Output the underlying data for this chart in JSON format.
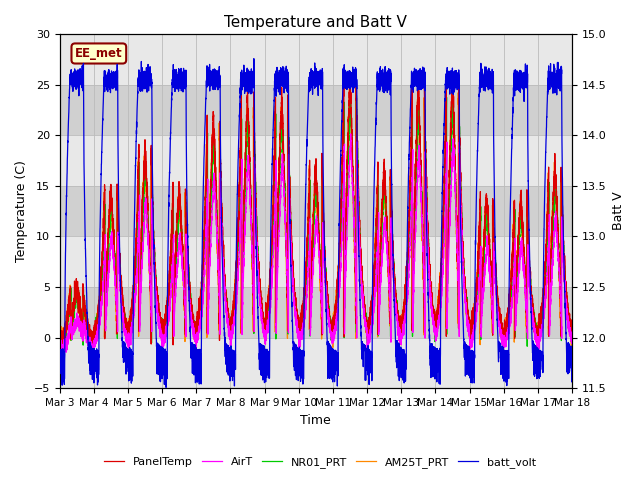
{
  "title": "Temperature and Batt V",
  "xlabel": "Time",
  "ylabel_left": "Temperature (C)",
  "ylabel_right": "Batt V",
  "xlim_days": [
    3,
    18
  ],
  "ylim_left": [
    -5,
    30
  ],
  "ylim_right": [
    11.5,
    15.0
  ],
  "xtick_labels": [
    "Mar 3",
    "Mar 4",
    "Mar 5",
    "Mar 6",
    "Mar 7",
    "Mar 8",
    "Mar 9",
    "Mar 10",
    "Mar 11",
    "Mar 12",
    "Mar 13",
    "Mar 14",
    "Mar 15",
    "Mar 16",
    "Mar 17",
    "Mar 18"
  ],
  "xtick_positions": [
    3,
    4,
    5,
    6,
    7,
    8,
    9,
    10,
    11,
    12,
    13,
    14,
    15,
    16,
    17,
    18
  ],
  "yticks_left": [
    -5,
    0,
    5,
    10,
    15,
    20,
    25,
    30
  ],
  "yticks_right": [
    11.5,
    12.0,
    12.5,
    13.0,
    13.5,
    14.0,
    14.5,
    15.0
  ],
  "grid_color": "#bbbbbb",
  "bg_color": "#d8d8d8",
  "band_colors": [
    "#e8e8e8",
    "#d0d0d0"
  ],
  "annotation_text": "EE_met",
  "annotation_color": "#8b0000",
  "annotation_bg": "#ffffcc",
  "legend_entries": [
    {
      "label": "PanelTemp",
      "color": "#dd0000"
    },
    {
      "label": "AirT",
      "color": "#ff00ff"
    },
    {
      "label": "NR01_PRT",
      "color": "#00cc00"
    },
    {
      "label": "AM25T_PRT",
      "color": "#ff8800"
    },
    {
      "label": "batt_volt",
      "color": "#0000dd"
    }
  ],
  "seed": 42,
  "n_points": 7200,
  "day_peak_heights": [
    5,
    15,
    19,
    15,
    22,
    24,
    24,
    17,
    26,
    17,
    25,
    26,
    14,
    14,
    17
  ],
  "night_base": -2,
  "batt_day_high": 14.55,
  "batt_night_low": 11.8
}
